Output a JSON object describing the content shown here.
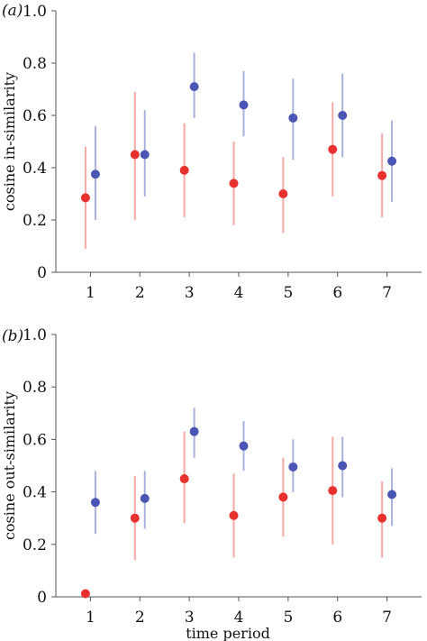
{
  "chart_data": [
    {
      "type": "scatter",
      "panel_label": "(a)",
      "ylabel": "cosine in-similarity",
      "xlabel": "",
      "x_ticks": [
        "1",
        "2",
        "3",
        "4",
        "5",
        "6",
        "7"
      ],
      "y_ticks": [
        "0",
        "0.2",
        "0.4",
        "0.6",
        "0.8",
        "1.0"
      ],
      "ylim": [
        0,
        1.0
      ],
      "xlim": [
        0.3,
        7.7
      ],
      "series": [
        {
          "color": "#e8312f",
          "bar_color": "#f4a9a4",
          "points": [
            {
              "x": 0.9,
              "y": 0.285,
              "lo": 0.09,
              "hi": 0.48
            },
            {
              "x": 1.9,
              "y": 0.45,
              "lo": 0.2,
              "hi": 0.69
            },
            {
              "x": 2.9,
              "y": 0.39,
              "lo": 0.21,
              "hi": 0.57
            },
            {
              "x": 3.9,
              "y": 0.34,
              "lo": 0.18,
              "hi": 0.5
            },
            {
              "x": 4.9,
              "y": 0.3,
              "lo": 0.15,
              "hi": 0.44
            },
            {
              "x": 5.9,
              "y": 0.47,
              "lo": 0.29,
              "hi": 0.65
            },
            {
              "x": 6.9,
              "y": 0.37,
              "lo": 0.21,
              "hi": 0.53
            }
          ]
        },
        {
          "color": "#4a55b5",
          "bar_color": "#aab0dc",
          "points": [
            {
              "x": 1.1,
              "y": 0.375,
              "lo": 0.2,
              "hi": 0.56
            },
            {
              "x": 2.1,
              "y": 0.45,
              "lo": 0.29,
              "hi": 0.62
            },
            {
              "x": 3.1,
              "y": 0.71,
              "lo": 0.59,
              "hi": 0.84
            },
            {
              "x": 4.1,
              "y": 0.64,
              "lo": 0.52,
              "hi": 0.77
            },
            {
              "x": 5.1,
              "y": 0.59,
              "lo": 0.43,
              "hi": 0.74
            },
            {
              "x": 6.1,
              "y": 0.6,
              "lo": 0.44,
              "hi": 0.76
            },
            {
              "x": 7.1,
              "y": 0.425,
              "lo": 0.27,
              "hi": 0.58
            }
          ]
        }
      ]
    },
    {
      "type": "scatter",
      "panel_label": "(b)",
      "ylabel": "cosine out-similarity",
      "xlabel": "time period",
      "x_ticks": [
        "1",
        "2",
        "3",
        "4",
        "5",
        "6",
        "7"
      ],
      "y_ticks": [
        "0",
        "0.2",
        "0.4",
        "0.6",
        "0.8",
        "1.0"
      ],
      "ylim": [
        0,
        1.0
      ],
      "xlim": [
        0.3,
        7.7
      ],
      "series": [
        {
          "color": "#e8312f",
          "bar_color": "#f4a9a4",
          "points": [
            {
              "x": 0.9,
              "y": 0.012,
              "lo": 0.0,
              "hi": 0.02
            },
            {
              "x": 1.9,
              "y": 0.3,
              "lo": 0.14,
              "hi": 0.46
            },
            {
              "x": 2.9,
              "y": 0.45,
              "lo": 0.28,
              "hi": 0.63
            },
            {
              "x": 3.9,
              "y": 0.31,
              "lo": 0.15,
              "hi": 0.47
            },
            {
              "x": 4.9,
              "y": 0.38,
              "lo": 0.23,
              "hi": 0.53
            },
            {
              "x": 5.9,
              "y": 0.405,
              "lo": 0.2,
              "hi": 0.61
            },
            {
              "x": 6.9,
              "y": 0.3,
              "lo": 0.15,
              "hi": 0.44
            }
          ]
        },
        {
          "color": "#4a55b5",
          "bar_color": "#aab0dc",
          "points": [
            {
              "x": 1.1,
              "y": 0.36,
              "lo": 0.24,
              "hi": 0.48
            },
            {
              "x": 2.1,
              "y": 0.375,
              "lo": 0.26,
              "hi": 0.48
            },
            {
              "x": 3.1,
              "y": 0.63,
              "lo": 0.53,
              "hi": 0.72
            },
            {
              "x": 4.1,
              "y": 0.575,
              "lo": 0.48,
              "hi": 0.67
            },
            {
              "x": 5.1,
              "y": 0.495,
              "lo": 0.4,
              "hi": 0.6
            },
            {
              "x": 6.1,
              "y": 0.5,
              "lo": 0.38,
              "hi": 0.61
            },
            {
              "x": 7.1,
              "y": 0.39,
              "lo": 0.27,
              "hi": 0.49
            }
          ]
        }
      ]
    }
  ]
}
